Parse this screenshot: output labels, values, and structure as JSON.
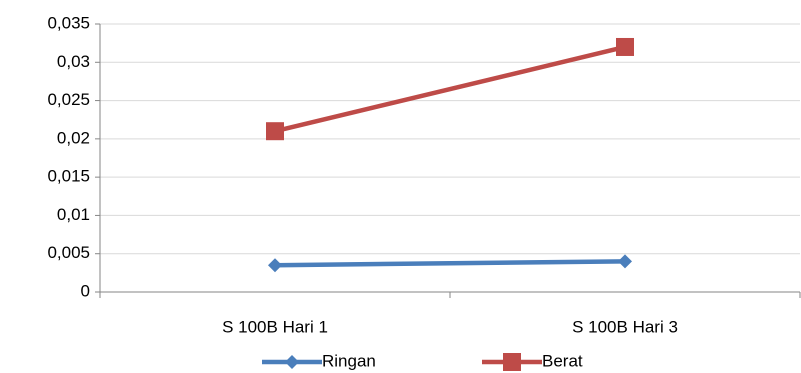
{
  "chart_data": {
    "type": "line",
    "categories": [
      "S 100B Hari 1",
      "S 100B Hari 3"
    ],
    "series": [
      {
        "name": "Ringan",
        "color": "#4a7ebb",
        "marker": "diamond",
        "values": [
          0.0035,
          0.004
        ]
      },
      {
        "name": "Berat",
        "color": "#be4b48",
        "marker": "square",
        "values": [
          0.021,
          0.032
        ]
      }
    ],
    "ylim": [
      0,
      0.035
    ],
    "yticks": [
      0,
      {
        "value": 0.005,
        "label": "0,005"
      },
      {
        "value": 0.01,
        "label": "0,01"
      },
      {
        "value": 0.015,
        "label": "0,015"
      },
      {
        "value": 0.02,
        "label": "0,02"
      },
      {
        "value": 0.025,
        "label": "0,025"
      },
      {
        "value": 0.03,
        "label": "0,03"
      },
      {
        "value": 0.035,
        "label": "0,035"
      }
    ],
    "grid": true,
    "legend": "bottom"
  }
}
